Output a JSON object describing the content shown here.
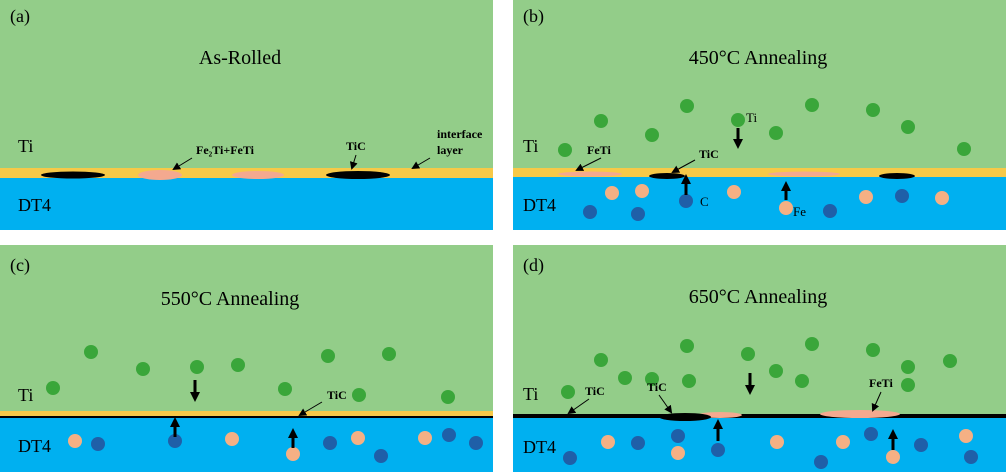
{
  "panels": [
    {
      "label": "(a)",
      "title": "As-Rolled",
      "top_layer": "Ti",
      "bottom_layer": "DT4",
      "annotations": [
        "Fe₂Ti+FeTi",
        "TiC",
        "interface",
        "layer"
      ]
    },
    {
      "label": "(b)",
      "title": "450°C Annealing",
      "top_layer": "Ti",
      "bottom_layer": "DT4",
      "annotations": [
        "FeTi",
        "TiC",
        "Ti",
        "C",
        "Fe"
      ]
    },
    {
      "label": "(c)",
      "title": "550°C Annealing",
      "top_layer": "Ti",
      "bottom_layer": "DT4",
      "annotations": [
        "TiC"
      ]
    },
    {
      "label": "(d)",
      "title": "650°C Annealing",
      "top_layer": "Ti",
      "bottom_layer": "DT4",
      "annotations": [
        "TiC",
        "TiC",
        "FeTi"
      ]
    }
  ]
}
